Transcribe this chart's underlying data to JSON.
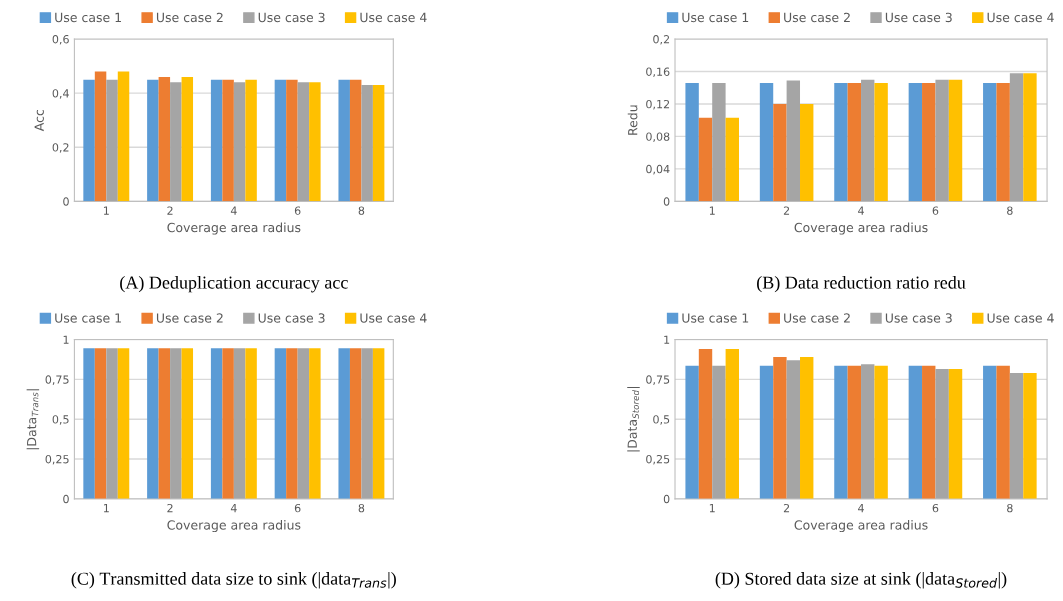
{
  "chart_data": [
    {
      "type": "bar",
      "categories": [
        "1",
        "2",
        "4",
        "6",
        "8"
      ],
      "xlabel": "Coverage area radius",
      "ylabel": "Acc",
      "ylim": [
        0,
        0.6
      ],
      "yticks": [
        0,
        {
          "value": 0.2,
          "label": "0,2"
        },
        {
          "value": 0.4,
          "label": "0,4"
        },
        {
          "value": 0.6,
          "label": "0,6"
        }
      ],
      "grid": "y",
      "legend": "top",
      "annotations": [
        "(A) Deduplication accuracy acc"
      ],
      "series": [
        {
          "name": "Use case 1",
          "color": "#5b9bd5",
          "values": [
            0.45,
            0.45,
            0.45,
            0.45,
            0.45
          ]
        },
        {
          "name": "Use case 2",
          "color": "#ed7d31",
          "values": [
            0.48,
            0.46,
            0.45,
            0.45,
            0.45
          ]
        },
        {
          "name": "Use case 3",
          "color": "#a5a5a5",
          "values": [
            0.45,
            0.44,
            0.44,
            0.44,
            0.43
          ]
        },
        {
          "name": "Use case 4",
          "color": "#ffc000",
          "values": [
            0.48,
            0.46,
            0.45,
            0.44,
            0.43
          ]
        }
      ]
    },
    {
      "type": "bar",
      "categories": [
        "1",
        "2",
        "4",
        "6",
        "8"
      ],
      "xlabel": "Coverage area radius",
      "ylabel": "Redu",
      "ylim": [
        0,
        0.2
      ],
      "yticks": [
        0,
        {
          "value": 0.04,
          "label": "0,04"
        },
        {
          "value": 0.08,
          "label": "0,08"
        },
        {
          "value": 0.12,
          "label": "0,12"
        },
        {
          "value": 0.16,
          "label": "0,16"
        },
        {
          "value": 0.2,
          "label": "0,2"
        }
      ],
      "grid": "y",
      "legend": "top",
      "annotations": [
        "(B) Data reduction ratio redu"
      ],
      "series": [
        {
          "name": "Use case 1",
          "color": "#5b9bd5",
          "values": [
            0.146,
            0.146,
            0.146,
            0.146,
            0.146
          ]
        },
        {
          "name": "Use case 2",
          "color": "#ed7d31",
          "values": [
            0.103,
            0.12,
            0.146,
            0.146,
            0.146
          ]
        },
        {
          "name": "Use case 3",
          "color": "#a5a5a5",
          "values": [
            0.146,
            0.149,
            0.15,
            0.15,
            0.158
          ]
        },
        {
          "name": "Use case 4",
          "color": "#ffc000",
          "values": [
            0.103,
            0.12,
            0.146,
            0.15,
            0.158
          ]
        }
      ]
    },
    {
      "type": "bar",
      "categories": [
        "1",
        "2",
        "4",
        "6",
        "8"
      ],
      "xlabel": "Coverage area radius",
      "ylabel": "|Data$_{Trans}$|",
      "ylim": [
        0,
        1
      ],
      "yticks": [
        0,
        {
          "value": 0.25,
          "label": "0,25"
        },
        {
          "value": 0.5,
          "label": "0,5"
        },
        {
          "value": 0.75,
          "label": "0,75"
        },
        1
      ],
      "grid": "y",
      "legend": "top",
      "annotations": [
        "(C) Transmitted data size to sink (|data$_{Trans}$|)"
      ],
      "series": [
        {
          "name": "Use case 1",
          "color": "#5b9bd5",
          "values": [
            0.945,
            0.945,
            0.945,
            0.945,
            0.945
          ]
        },
        {
          "name": "Use case 2",
          "color": "#ed7d31",
          "values": [
            0.945,
            0.945,
            0.945,
            0.945,
            0.945
          ]
        },
        {
          "name": "Use case 3",
          "color": "#a5a5a5",
          "values": [
            0.945,
            0.945,
            0.945,
            0.945,
            0.945
          ]
        },
        {
          "name": "Use case 4",
          "color": "#ffc000",
          "values": [
            0.945,
            0.945,
            0.945,
            0.945,
            0.945
          ]
        }
      ]
    },
    {
      "type": "bar",
      "categories": [
        "1",
        "2",
        "4",
        "6",
        "8"
      ],
      "xlabel": "Coverage area radius",
      "ylabel": "|Data$_{Stored}$|",
      "ylim": [
        0,
        1
      ],
      "yticks": [
        0,
        {
          "value": 0.25,
          "label": "0,25"
        },
        {
          "value": 0.5,
          "label": "0,5"
        },
        {
          "value": 0.75,
          "label": "0,75"
        },
        1
      ],
      "grid": "y",
      "legend": "top",
      "annotations": [
        "(D) Stored data size at sink (|data$_{Stored}$|)"
      ],
      "series": [
        {
          "name": "Use case 1",
          "color": "#5b9bd5",
          "values": [
            0.835,
            0.835,
            0.835,
            0.835,
            0.835
          ]
        },
        {
          "name": "Use case 2",
          "color": "#ed7d31",
          "values": [
            0.94,
            0.89,
            0.835,
            0.835,
            0.835
          ]
        },
        {
          "name": "Use case 3",
          "color": "#a5a5a5",
          "values": [
            0.835,
            0.87,
            0.845,
            0.815,
            0.79
          ]
        },
        {
          "name": "Use case 4",
          "color": "#ffc000",
          "values": [
            0.94,
            0.89,
            0.835,
            0.815,
            0.79
          ]
        }
      ]
    }
  ]
}
